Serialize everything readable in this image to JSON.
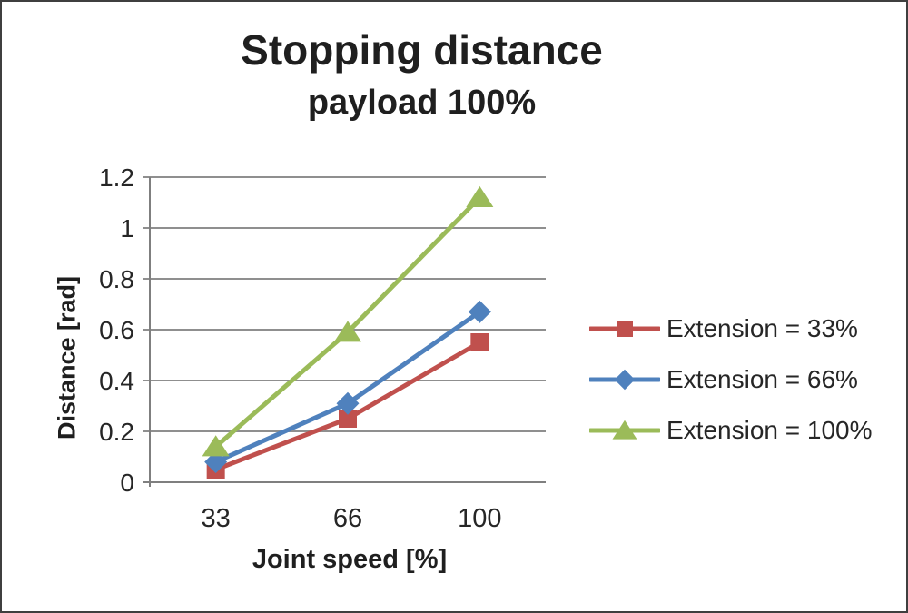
{
  "chart": {
    "title": "Stopping distance",
    "subtitle": "payload 100%",
    "x_axis": {
      "title": "Joint speed [%]",
      "tick_labels": [
        "33",
        "66",
        "100"
      ]
    },
    "y_axis": {
      "title": "Distance [rad]",
      "ticks": [
        0,
        0.2,
        0.4,
        0.6,
        0.8,
        1,
        1.2
      ],
      "tick_labels": [
        "0",
        "0.2",
        "0.4",
        "0.6",
        "0.8",
        "1",
        "1.2"
      ]
    }
  },
  "chart_data": {
    "type": "line",
    "title": "Stopping distance",
    "subtitle": "payload 100%",
    "xlabel": "Joint speed [%]",
    "ylabel": "Distance [rad]",
    "categories": [
      33,
      66,
      100
    ],
    "series": [
      {
        "name": "Extension = 33%",
        "values": [
          0.05,
          0.25,
          0.55
        ],
        "color": "#C0504D",
        "marker": "square"
      },
      {
        "name": "Extension = 66%",
        "values": [
          0.08,
          0.31,
          0.67
        ],
        "color": "#4F81BD",
        "marker": "diamond"
      },
      {
        "name": "Extension = 100%",
        "values": [
          0.14,
          0.59,
          1.12
        ],
        "color": "#9BBB59",
        "marker": "triangle"
      }
    ],
    "ylim": [
      0,
      1.2
    ],
    "grid": true,
    "legend_position": "right"
  },
  "colors": {
    "background": "#FFFFFF",
    "border": "#3F3F3F",
    "gridline": "#8F8F8F",
    "axis": "#7F7F7F",
    "text": "#262626"
  }
}
